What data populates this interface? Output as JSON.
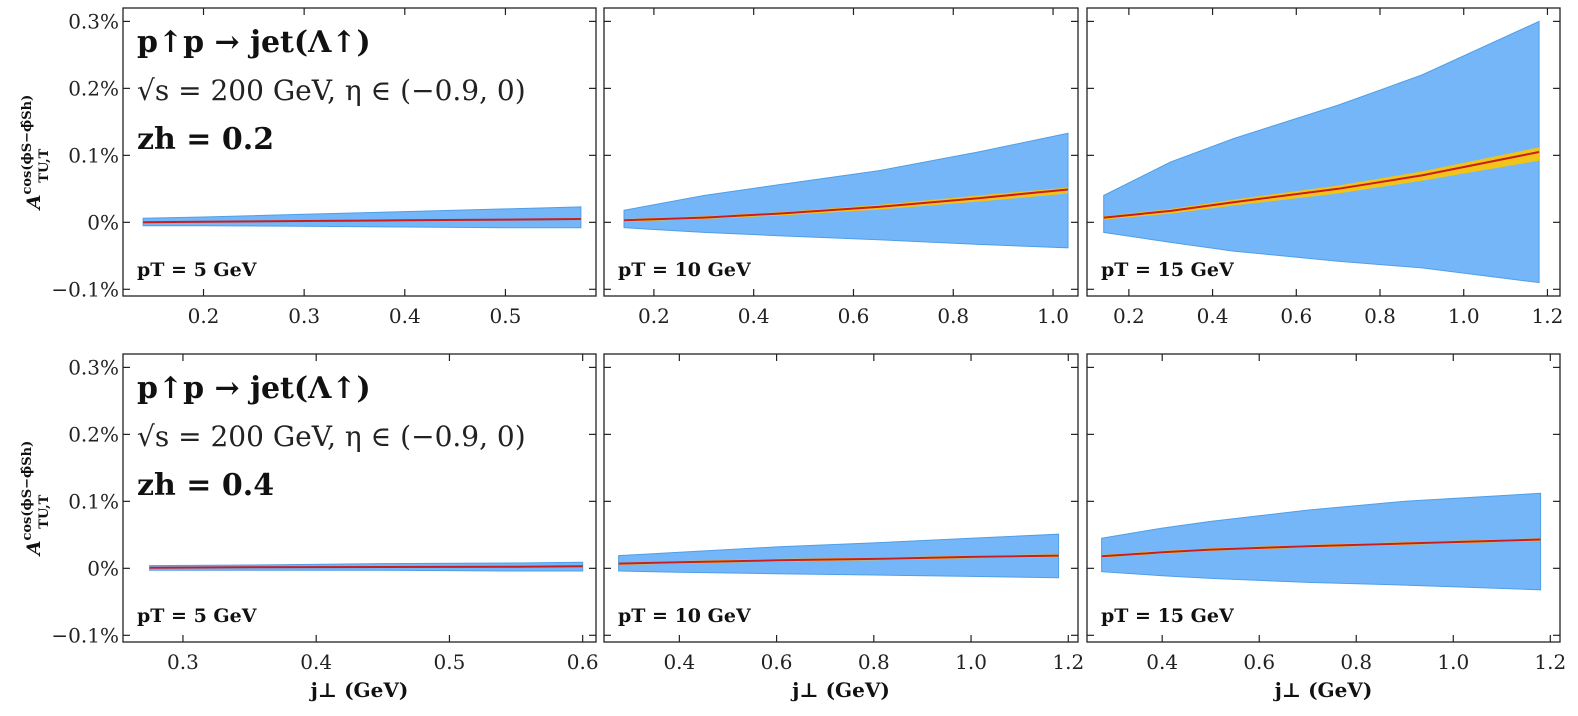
{
  "colors": {
    "band_outer": "#74b6f8",
    "band_outer_edge": "#4f9fe8",
    "band_inner": "#f2c318",
    "center_line": "#c81e1e",
    "frame": "#222222"
  },
  "ylabel": "A_{TU,T}^{cos(φ_S − φ̂_{S_h})}",
  "ylabel_main": "A",
  "ylabel_sup": "cos(ϕS−ϕ̂Sh)",
  "ylabel_sub": "TU,T",
  "xlabel": "j⊥ (GeV)",
  "process": "p↑p → jet(Λ↑)",
  "kinematics": "√s = 200 GeV, η ∈ (−0.9, 0)",
  "y_ticks": [
    {
      "value": 0.3,
      "label": "0.3%"
    },
    {
      "value": 0.2,
      "label": "0.2%"
    },
    {
      "value": 0.1,
      "label": "0.1%"
    },
    {
      "value": 0.0,
      "label": "0%"
    },
    {
      "value": -0.1,
      "label": "−0.1%"
    }
  ],
  "chart_data": [
    {
      "type": "line",
      "row": 0,
      "col": 0,
      "label": "pT = 5 GeV",
      "title": "p↑p → jet(Λ↑)",
      "subtitle": "√s = 200 GeV, η ∈ (−0.9, 0)",
      "z_label": "zh = 0.2",
      "xlim": [
        0.12,
        0.59
      ],
      "ylim": [
        -0.11,
        0.32
      ],
      "xticks": [
        0.2,
        0.3,
        0.4,
        0.5
      ],
      "x": [
        0.14,
        0.2,
        0.3,
        0.4,
        0.5,
        0.575
      ],
      "y": [
        0.0,
        0.001,
        0.002,
        0.003,
        0.004,
        0.005
      ],
      "band_lo": [
        -0.005,
        -0.005,
        -0.006,
        -0.007,
        -0.008,
        -0.008
      ],
      "band_hi": [
        0.006,
        0.008,
        0.012,
        0.016,
        0.02,
        0.023
      ],
      "inner_lo": [
        -0.001,
        0.0,
        0.001,
        0.002,
        0.003,
        0.004
      ],
      "inner_hi": [
        0.001,
        0.002,
        0.003,
        0.004,
        0.005,
        0.006
      ]
    },
    {
      "type": "line",
      "row": 0,
      "col": 1,
      "label": "pT = 10 GeV",
      "xlim": [
        0.1,
        1.05
      ],
      "ylim": [
        -0.11,
        0.32
      ],
      "xticks": [
        0.2,
        0.4,
        0.6,
        0.8,
        1.0
      ],
      "x": [
        0.14,
        0.3,
        0.45,
        0.65,
        0.85,
        1.03
      ],
      "y": [
        0.003,
        0.007,
        0.013,
        0.023,
        0.036,
        0.049
      ],
      "band_lo": [
        -0.008,
        -0.015,
        -0.02,
        -0.026,
        -0.033,
        -0.038
      ],
      "band_hi": [
        0.018,
        0.04,
        0.056,
        0.077,
        0.105,
        0.133
      ],
      "inner_lo": [
        0.001,
        0.005,
        0.01,
        0.019,
        0.031,
        0.043
      ],
      "inner_hi": [
        0.005,
        0.009,
        0.015,
        0.026,
        0.04,
        0.052
      ]
    },
    {
      "type": "line",
      "row": 0,
      "col": 2,
      "label": "pT = 15 GeV",
      "xlim": [
        0.1,
        1.23
      ],
      "ylim": [
        -0.11,
        0.32
      ],
      "xticks": [
        0.2,
        0.4,
        0.6,
        0.8,
        1.0,
        1.2
      ],
      "x": [
        0.14,
        0.3,
        0.45,
        0.7,
        0.9,
        1.18
      ],
      "y": [
        0.007,
        0.017,
        0.03,
        0.05,
        0.07,
        0.105
      ],
      "band_lo": [
        -0.015,
        -0.03,
        -0.043,
        -0.058,
        -0.068,
        -0.09
      ],
      "band_hi": [
        0.04,
        0.09,
        0.125,
        0.175,
        0.22,
        0.3
      ],
      "inner_lo": [
        0.004,
        0.013,
        0.025,
        0.043,
        0.062,
        0.092
      ],
      "inner_hi": [
        0.009,
        0.02,
        0.034,
        0.055,
        0.076,
        0.112
      ]
    },
    {
      "type": "line",
      "row": 1,
      "col": 0,
      "label": "pT = 5 GeV",
      "title": "p↑p → jet(Λ↑)",
      "subtitle": "√s = 200 GeV, η ∈ (−0.9, 0)",
      "z_label": "zh = 0.4",
      "xlim": [
        0.255,
        0.61
      ],
      "ylim": [
        -0.11,
        0.32
      ],
      "xticks": [
        0.3,
        0.4,
        0.5,
        0.6
      ],
      "x": [
        0.275,
        0.35,
        0.45,
        0.55,
        0.6
      ],
      "y": [
        0.001,
        0.0015,
        0.002,
        0.0025,
        0.003
      ],
      "band_lo": [
        -0.003,
        -0.003,
        -0.003,
        -0.004,
        -0.004
      ],
      "band_hi": [
        0.004,
        0.005,
        0.007,
        0.008,
        0.009
      ],
      "inner_lo": [
        0.0005,
        0.001,
        0.0015,
        0.002,
        0.0025
      ],
      "inner_hi": [
        0.0015,
        0.002,
        0.0025,
        0.003,
        0.0035
      ]
    },
    {
      "type": "line",
      "row": 1,
      "col": 1,
      "label": "pT = 10 GeV",
      "xlim": [
        0.245,
        1.22
      ],
      "ylim": [
        -0.11,
        0.32
      ],
      "xticks": [
        0.4,
        0.6,
        0.8,
        1.0,
        1.2
      ],
      "x": [
        0.275,
        0.4,
        0.6,
        0.8,
        1.0,
        1.18
      ],
      "y": [
        0.007,
        0.009,
        0.012,
        0.014,
        0.017,
        0.019
      ],
      "band_lo": [
        -0.004,
        -0.006,
        -0.008,
        -0.01,
        -0.012,
        -0.014
      ],
      "band_hi": [
        0.019,
        0.024,
        0.032,
        0.038,
        0.045,
        0.051
      ],
      "inner_lo": [
        0.005,
        0.007,
        0.01,
        0.012,
        0.015,
        0.017
      ],
      "inner_hi": [
        0.008,
        0.011,
        0.014,
        0.016,
        0.019,
        0.021
      ]
    },
    {
      "type": "line",
      "row": 1,
      "col": 2,
      "label": "pT = 15 GeV",
      "xlim": [
        0.245,
        1.22
      ],
      "ylim": [
        -0.11,
        0.32
      ],
      "xticks": [
        0.4,
        0.6,
        0.8,
        1.0,
        1.2
      ],
      "x": [
        0.275,
        0.4,
        0.5,
        0.7,
        0.9,
        1.18
      ],
      "y": [
        0.018,
        0.024,
        0.028,
        0.033,
        0.037,
        0.043
      ],
      "band_lo": [
        -0.005,
        -0.011,
        -0.015,
        -0.021,
        -0.025,
        -0.032
      ],
      "band_hi": [
        0.045,
        0.06,
        0.07,
        0.087,
        0.1,
        0.112
      ],
      "inner_lo": [
        0.016,
        0.022,
        0.026,
        0.031,
        0.035,
        0.041
      ],
      "inner_hi": [
        0.02,
        0.026,
        0.03,
        0.035,
        0.039,
        0.045
      ]
    }
  ]
}
